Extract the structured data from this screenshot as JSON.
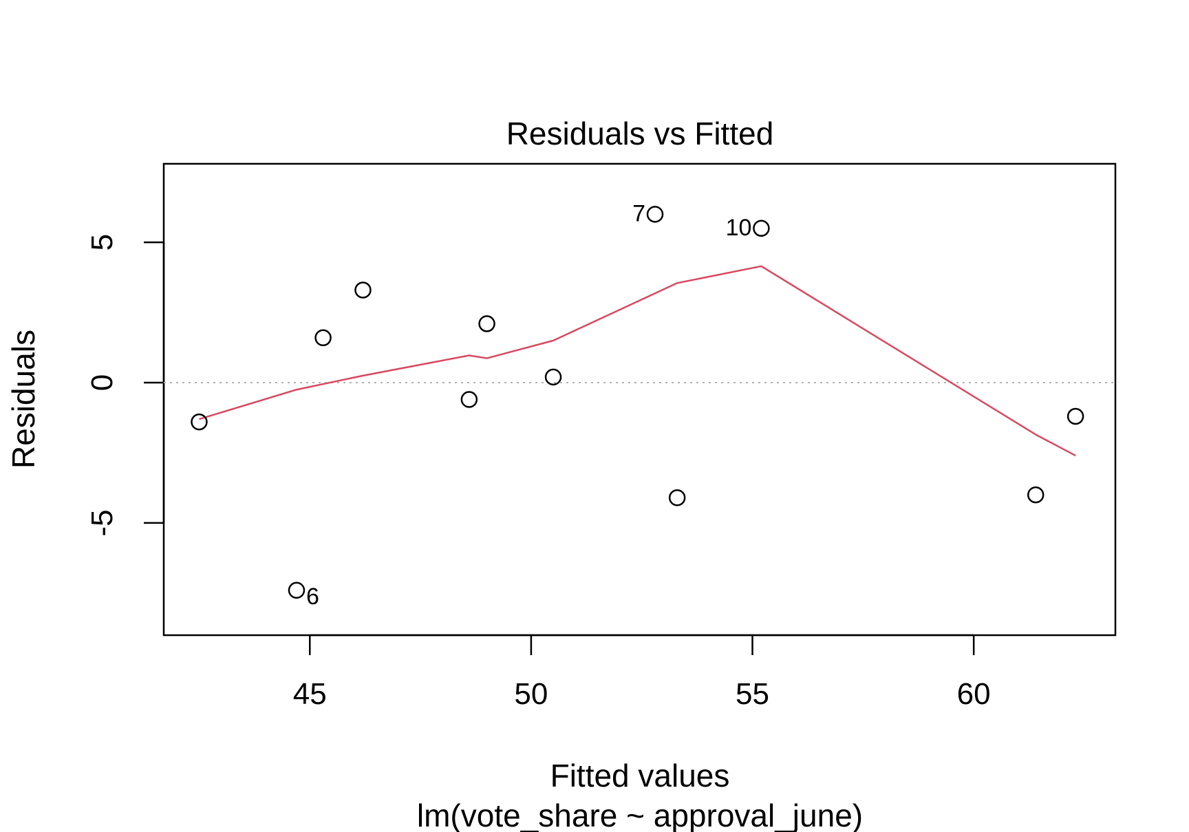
{
  "chart_data": {
    "type": "scatter",
    "title": "Residuals vs Fitted",
    "xlabel": "Fitted values",
    "subtitle": "lm(vote_share ~ approval_june)",
    "ylabel": "Residuals",
    "xlim": [
      41.7,
      63.2
    ],
    "ylim": [
      -9.0,
      7.8
    ],
    "x_ticks": [
      45,
      50,
      55,
      60
    ],
    "x_tick_labels": [
      "45",
      "50",
      "55",
      "60"
    ],
    "y_ticks": [
      -5,
      0,
      5
    ],
    "y_tick_labels": [
      "-5",
      "0",
      "5"
    ],
    "reference_line": {
      "y": 0,
      "style": "dotted",
      "color": "#b3b3b3"
    },
    "points": [
      {
        "x": 42.5,
        "y": -1.4,
        "label": ""
      },
      {
        "x": 44.7,
        "y": -7.4,
        "label": "6"
      },
      {
        "x": 45.3,
        "y": 1.6,
        "label": ""
      },
      {
        "x": 46.2,
        "y": 3.3,
        "label": ""
      },
      {
        "x": 48.6,
        "y": -0.6,
        "label": ""
      },
      {
        "x": 49.0,
        "y": 2.1,
        "label": ""
      },
      {
        "x": 50.5,
        "y": 0.2,
        "label": ""
      },
      {
        "x": 52.8,
        "y": 6.0,
        "label": "7"
      },
      {
        "x": 53.3,
        "y": -4.1,
        "label": ""
      },
      {
        "x": 55.2,
        "y": 5.5,
        "label": "10"
      },
      {
        "x": 61.4,
        "y": -4.0,
        "label": ""
      },
      {
        "x": 62.3,
        "y": -1.2,
        "label": ""
      }
    ],
    "smooth_line": {
      "color": "#d8485f",
      "x": [
        42.5,
        44.7,
        45.3,
        46.2,
        48.6,
        49.0,
        50.5,
        53.3,
        55.2,
        61.4,
        62.3
      ],
      "y": [
        -1.3,
        -0.25,
        -0.05,
        0.25,
        0.97,
        0.87,
        1.5,
        3.55,
        4.15,
        -1.85,
        -2.6
      ]
    }
  }
}
